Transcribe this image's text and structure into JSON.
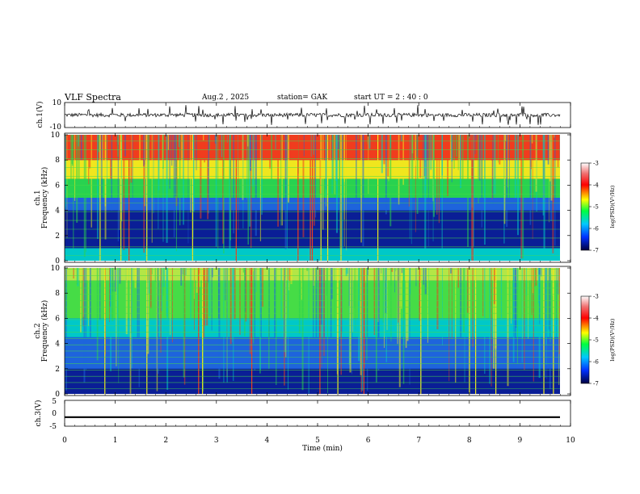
{
  "header": {
    "title": "VLF  Spectra",
    "date": "Aug.2  , 2025",
    "station": "station= GAK",
    "start": "start  UT  =   2  : 40 : 0"
  },
  "chart_data": [
    {
      "type": "line",
      "id": "ch1-waveform",
      "ylabel": "ch.1(V)",
      "ylim": [
        -10,
        10
      ],
      "y_ticks": [
        "10",
        "-10"
      ],
      "baseline": 0,
      "typical_amplitude": 1.5
    },
    {
      "type": "heatmap",
      "id": "ch1-spectrogram",
      "ylabel": [
        "ch.1",
        "Frequency  (kHz)"
      ],
      "xlim": [
        0,
        9.8
      ],
      "ylim": [
        0,
        10
      ],
      "y_ticks": [
        "0",
        "2",
        "4",
        "6",
        "8",
        "10"
      ],
      "bands": [
        {
          "from": 0,
          "to": 1,
          "color": "#00c8c8"
        },
        {
          "from": 1,
          "to": 4,
          "color": "#0a1e96"
        },
        {
          "from": 4,
          "to": 5,
          "color": "#1e64dc"
        },
        {
          "from": 5,
          "to": 6.5,
          "color": "#28d250"
        },
        {
          "from": 6.5,
          "to": 8,
          "color": "#f0e61e"
        },
        {
          "from": 8,
          "to": 10,
          "color": "#f03c1e"
        }
      ]
    },
    {
      "type": "heatmap",
      "id": "ch2-spectrogram",
      "ylabel": [
        "ch.2",
        "Frequency  (kHz)"
      ],
      "xlim": [
        0,
        9.8
      ],
      "ylim": [
        0,
        10
      ],
      "y_ticks": [
        "0",
        "2",
        "4",
        "6",
        "8",
        "10"
      ],
      "bands": [
        {
          "from": 0,
          "to": 2,
          "color": "#0a1e96"
        },
        {
          "from": 2,
          "to": 4.5,
          "color": "#1e64dc"
        },
        {
          "from": 4.5,
          "to": 6,
          "color": "#00c8c8"
        },
        {
          "from": 6,
          "to": 9,
          "color": "#46dc46"
        },
        {
          "from": 9,
          "to": 10,
          "color": "#b4e646"
        }
      ]
    },
    {
      "type": "line",
      "id": "ch3-waveform",
      "ylabel": "ch.3(V)",
      "ylim": [
        -5,
        5
      ],
      "y_ticks": [
        "5",
        "0",
        "-5"
      ],
      "level": -1.5
    }
  ],
  "x_axis": {
    "label": "Time  (min)",
    "range": [
      0,
      10
    ],
    "ticks": [
      "0",
      "1",
      "2",
      "3",
      "4",
      "5",
      "6",
      "7",
      "8",
      "9",
      "10"
    ]
  },
  "colorbars": [
    {
      "label": "log(PSD)(V²/Hz)",
      "ticks": [
        "-3",
        "-4",
        "-5",
        "-6",
        "-7"
      ]
    },
    {
      "label": "log(PSD)(V²/Hz)",
      "ticks": [
        "-3",
        "-4",
        "-5",
        "-6",
        "-7"
      ]
    }
  ],
  "colors": {
    "red": "#f03c1e",
    "yellow": "#f0e61e",
    "green": "#28d250",
    "cyan": "#00c8c8",
    "blue": "#1e64dc",
    "navy": "#0a1e96"
  }
}
